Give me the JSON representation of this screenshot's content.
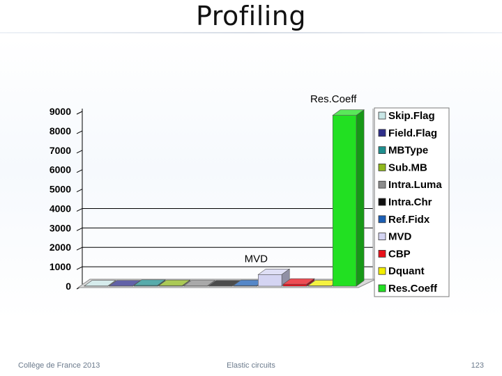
{
  "slide": {
    "title": "Profiling",
    "footer_left": "Collège de France 2013",
    "footer_center": "Elastic circuits",
    "footer_right": "123"
  },
  "colors": {
    "text": "#000000",
    "grid": "#000000"
  },
  "chart_data": {
    "type": "bar",
    "style": "3d",
    "categories": [
      "Skip.Flag",
      "Field.Flag",
      "MBType",
      "Sub.MB",
      "Intra.Luma",
      "Intra.Chr",
      "Ref.Fidx",
      "MVD",
      "CBP",
      "Dquant",
      "Res.Coeff"
    ],
    "values": [
      10,
      10,
      40,
      30,
      10,
      10,
      30,
      600,
      100,
      20,
      8800
    ],
    "colors": [
      "#c8e6e6",
      "#2e2e8a",
      "#1f8f8f",
      "#8fb81c",
      "#8c8c8c",
      "#101010",
      "#1c5fb5",
      "#d4d4f2",
      "#e8101a",
      "#f2ee00",
      "#22e022"
    ],
    "yticks": [
      0,
      1000,
      2000,
      3000,
      4000,
      5000,
      6000,
      7000,
      8000,
      9000
    ],
    "ylim": [
      0,
      9000
    ],
    "grid": true,
    "gridlines_at": [
      1000,
      2000,
      3000,
      4000
    ],
    "legend_position": "right",
    "data_labels": [
      {
        "category": "MVD",
        "text": "MVD"
      },
      {
        "category": "Res.Coeff",
        "text": "Res.Coeff"
      }
    ],
    "title": "",
    "xlabel": "",
    "ylabel": ""
  }
}
